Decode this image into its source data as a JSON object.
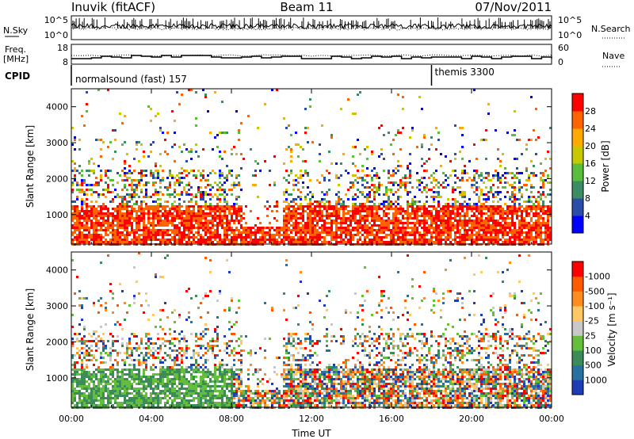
{
  "header": {
    "station": "Inuvik (fitACF)",
    "beam": "Beam 11",
    "date": "07/Nov/2011"
  },
  "sky_panel": {
    "left_label": "N.Sky",
    "right_label": "N.Search",
    "left_ticks": [
      "10^5",
      "10^0"
    ],
    "right_ticks": [
      "10^5",
      "10^0"
    ]
  },
  "freq_panel": {
    "left_label_1": "Freq.",
    "left_label_2": "[MHz]",
    "right_label": "Nave",
    "left_ticks": [
      "18",
      "8"
    ],
    "right_ticks": [
      "60",
      "0"
    ]
  },
  "cpid_panel": {
    "label": "CPID",
    "modes": [
      {
        "name": "normalsound (fast) 157",
        "start_hour": 0
      },
      {
        "name": "themis 3300",
        "start_hour": 18
      }
    ]
  },
  "chart_data": [
    {
      "type": "heatmap",
      "ylabel": "Slant Range [km]",
      "ylim": [
        180,
        4500
      ],
      "yticks": [
        "1000",
        "2000",
        "3000",
        "4000"
      ],
      "xlim": [
        0,
        24
      ],
      "colorbar": {
        "label": "Power [dB]",
        "ticks": [
          "4",
          "8",
          "12",
          "16",
          "20",
          "24",
          "28"
        ],
        "colors": [
          "#0000ff",
          "#2a4ea8",
          "#3c8c64",
          "#5abe3c",
          "#c8c800",
          "#ffaa00",
          "#ff6400",
          "#ff0000"
        ]
      }
    },
    {
      "type": "heatmap",
      "ylabel": "Slant Range [km]",
      "ylim": [
        180,
        4500
      ],
      "yticks": [
        "1000",
        "2000",
        "3000",
        "4000"
      ],
      "xlim": [
        0,
        24
      ],
      "colorbar": {
        "label": "Velocity [m s⁻¹]",
        "ticks": [
          "1000",
          "500",
          "100",
          "25",
          "-25",
          "-100",
          "-500",
          "-1000"
        ],
        "colors": [
          "#1e3cb4",
          "#2870a0",
          "#3c8c5a",
          "#64be3c",
          "#c8c8c8",
          "#ffc864",
          "#ff8c1e",
          "#ff5a00",
          "#ff0000"
        ]
      }
    }
  ],
  "x_axis": {
    "ticks": [
      "00:00",
      "04:00",
      "08:00",
      "12:00",
      "16:00",
      "20:00",
      "00:00"
    ],
    "label": "Time UT"
  }
}
